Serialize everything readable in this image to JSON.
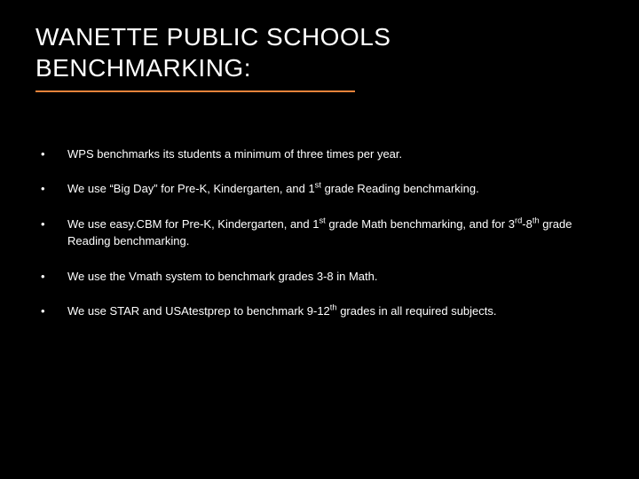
{
  "title": {
    "line1": "WANETTE PUBLIC SCHOOLS",
    "line2": "BENCHMARKING:",
    "text_color": "#ffffff",
    "underline_color": "#e8833a",
    "font_size": 28
  },
  "background_color": "#000000",
  "bullet_color": "#ffffff",
  "bullet_font_size": 13,
  "bullets": [
    {
      "html": "WPS benchmarks its students a minimum of three times per year."
    },
    {
      "html": "We use “Big Day” for Pre-K, Kindergarten, and 1<sup>st</sup> grade Reading benchmarking."
    },
    {
      "html": "We use easy.CBM for Pre-K, Kindergarten, and 1<sup>st</sup> grade Math benchmarking, and for 3<sup>rd</sup>-8<sup>th</sup> grade Reading benchmarking."
    },
    {
      "html": "We use the Vmath system to benchmark grades 3-8 in Math."
    },
    {
      "html": "We use STAR and USAtestprep to benchmark 9-12<sup>th</sup> grades in all required subjects."
    }
  ]
}
